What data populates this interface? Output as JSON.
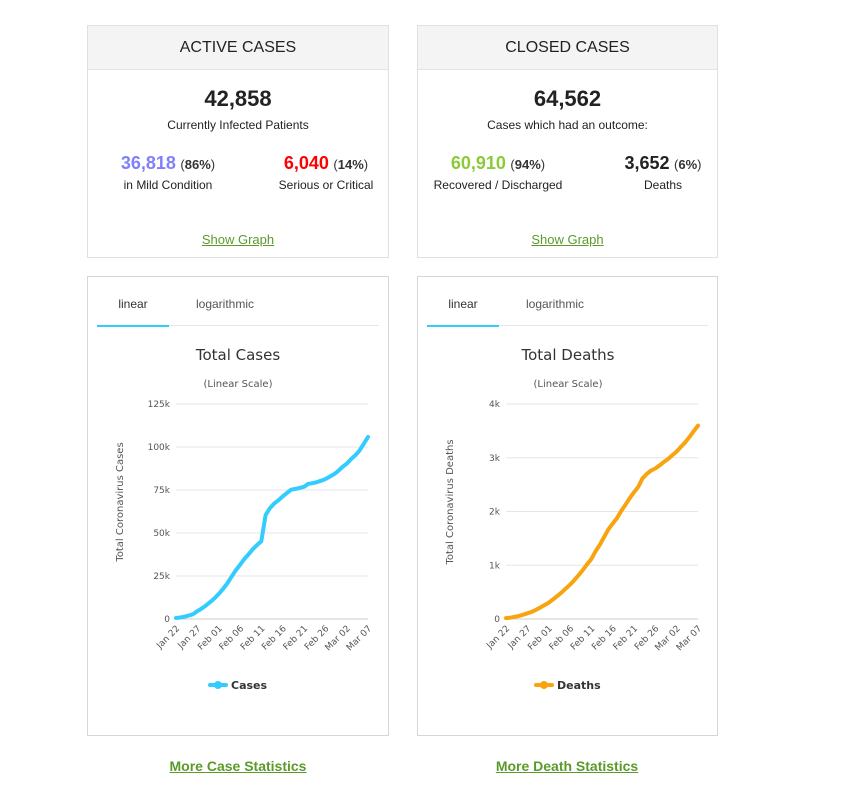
{
  "active_cases": {
    "title": "ACTIVE CASES",
    "total": "42,858",
    "total_label": "Currently Infected Patients",
    "mild_num": "36,818",
    "mild_pct": "86%",
    "mild_label": "in Mild Condition",
    "serious_num": "6,040",
    "serious_pct": "14%",
    "serious_label": "Serious or Critical",
    "show_graph": "Show Graph"
  },
  "closed_cases": {
    "title": "CLOSED CASES",
    "total": "64,562",
    "total_label": "Cases which had an outcome:",
    "recovered_num": "60,910",
    "recovered_pct": "94%",
    "recovered_label": "Recovered / Discharged",
    "deaths_num": "3,652",
    "deaths_pct": "6%",
    "deaths_label": "Deaths",
    "show_graph": "Show Graph"
  },
  "colors": {
    "mild": "#8080ff",
    "serious": "#ff0000",
    "recovered": "#8acb37",
    "deaths_num": "#222222",
    "cases_line": "#33ccff",
    "deaths_line": "#f8a40f",
    "link": "#5b9a2a"
  },
  "tabs": {
    "linear": "linear",
    "logarithmic": "logarithmic"
  },
  "links": {
    "more_cases": "More Case Statistics",
    "more_deaths": "More Death Statistics"
  },
  "chart_data": [
    {
      "type": "line",
      "title": "Total Cases",
      "subtitle": "(Linear Scale)",
      "ylabel": "Total Coronavirus Cases",
      "ylim": [
        0,
        125000
      ],
      "yticks": [
        0,
        25000,
        50000,
        75000,
        100000,
        125000
      ],
      "ytick_labels": [
        "0",
        "25k",
        "50k",
        "75k",
        "100k",
        "125k"
      ],
      "x_tick_labels": [
        "Jan 22",
        "Jan 27",
        "Feb 01",
        "Feb 06",
        "Feb 11",
        "Feb 16",
        "Feb 21",
        "Feb 26",
        "Mar 02",
        "Mar 07"
      ],
      "grid": true,
      "legend": "bottom",
      "series": [
        {
          "name": "Cases",
          "values": [
            580,
            845,
            1320,
            2010,
            2800,
            4580,
            6060,
            7820,
            9830,
            11950,
            14550,
            17390,
            20630,
            24550,
            28280,
            31480,
            34890,
            37560,
            40560,
            43100,
            45180,
            60380,
            64440,
            67090,
            69030,
            71270,
            73260,
            75150,
            75650,
            76200,
            76840,
            78600,
            78930,
            79560,
            80410,
            81360,
            82750,
            84120,
            86010,
            88370,
            90310,
            92840,
            95120,
            97890,
            101800,
            105800
          ]
        }
      ]
    },
    {
      "type": "line",
      "title": "Total Deaths",
      "subtitle": "(Linear Scale)",
      "ylabel": "Total Coronavirus Deaths",
      "ylim": [
        0,
        4000
      ],
      "yticks": [
        0,
        1000,
        2000,
        3000,
        4000
      ],
      "ytick_labels": [
        "0",
        "1k",
        "2k",
        "3k",
        "4k"
      ],
      "x_tick_labels": [
        "Jan 22",
        "Jan 27",
        "Feb 01",
        "Feb 06",
        "Feb 11",
        "Feb 16",
        "Feb 21",
        "Feb 26",
        "Mar 02",
        "Mar 07"
      ],
      "grid": true,
      "legend": "bottom",
      "series": [
        {
          "name": "Deaths",
          "values": [
            17,
            25,
            41,
            56,
            80,
            106,
            132,
            170,
            213,
            259,
            304,
            362,
            426,
            492,
            565,
            638,
            724,
            813,
            910,
            1018,
            1115,
            1261,
            1383,
            1526,
            1669,
            1775,
            1873,
            2009,
            2126,
            2247,
            2360,
            2460,
            2618,
            2699,
            2763,
            2800,
            2858,
            2923,
            2977,
            3050,
            3117,
            3202,
            3285,
            3387,
            3494,
            3599
          ]
        }
      ]
    }
  ]
}
